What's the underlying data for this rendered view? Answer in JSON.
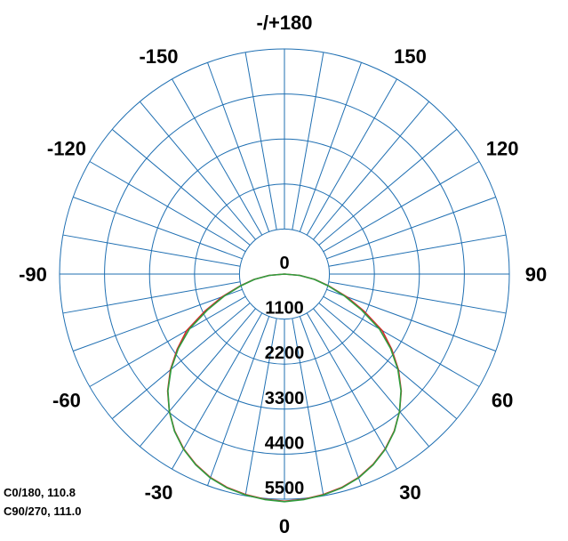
{
  "chart_data": {
    "type": "polar-line",
    "angle_labels": [
      {
        "angle": 0,
        "label": "0"
      },
      {
        "angle": 30,
        "label": "30"
      },
      {
        "angle": 60,
        "label": "60"
      },
      {
        "angle": 90,
        "label": "90"
      },
      {
        "angle": 120,
        "label": "120"
      },
      {
        "angle": 150,
        "label": "150"
      },
      {
        "angle": 180,
        "label": "-/+180"
      },
      {
        "angle": -150,
        "label": "-150"
      },
      {
        "angle": -120,
        "label": "-120"
      },
      {
        "angle": -90,
        "label": "-90"
      },
      {
        "angle": -60,
        "label": "-60"
      },
      {
        "angle": -30,
        "label": "-30"
      }
    ],
    "radial_ticks": [
      0,
      1100,
      2200,
      3300,
      4400,
      5500
    ],
    "radial_labels": [
      "0",
      "1100",
      "2200",
      "3300",
      "4400",
      "5500"
    ],
    "r_max": 5500,
    "angle_step": 10,
    "grid": true,
    "colors": {
      "grid": "#1f6fb2",
      "series_c0": "#d9252a",
      "series_c90": "#2e9e3e"
    },
    "series": [
      {
        "name": "C0/180, 110.8",
        "color": "#d9252a",
        "angles": [
          -90,
          -85,
          -80,
          -75,
          -70,
          -65,
          -60,
          -55,
          -50,
          -45,
          -40,
          -35,
          -30,
          -25,
          -20,
          -15,
          -10,
          -5,
          0,
          5,
          10,
          15,
          20,
          25,
          30,
          35,
          40,
          45,
          50,
          55,
          60,
          65,
          70,
          75,
          80,
          85,
          90
        ],
        "values": [
          0,
          380,
          760,
          1130,
          1620,
          2150,
          2760,
          3200,
          3640,
          4040,
          4380,
          4680,
          4930,
          5130,
          5290,
          5400,
          5470,
          5520,
          5550,
          5520,
          5470,
          5400,
          5290,
          5130,
          4930,
          4680,
          4380,
          4040,
          3640,
          3200,
          2760,
          2150,
          1620,
          1130,
          760,
          380,
          0
        ]
      },
      {
        "name": "C90/270, 111.0",
        "color": "#2e9e3e",
        "angles": [
          -90,
          -85,
          -80,
          -75,
          -70,
          -65,
          -60,
          -55,
          -50,
          -45,
          -40,
          -35,
          -30,
          -25,
          -20,
          -15,
          -10,
          -5,
          0,
          5,
          10,
          15,
          20,
          25,
          30,
          35,
          40,
          45,
          50,
          55,
          60,
          65,
          70,
          75,
          80,
          85,
          90
        ],
        "values": [
          0,
          370,
          740,
          1100,
          1560,
          2080,
          2680,
          3170,
          3620,
          4030,
          4380,
          4690,
          4940,
          5140,
          5300,
          5410,
          5480,
          5530,
          5560,
          5530,
          5480,
          5410,
          5300,
          5140,
          4940,
          4690,
          4380,
          4030,
          3620,
          3170,
          2680,
          2080,
          1560,
          1100,
          740,
          370,
          0
        ]
      }
    ]
  }
}
